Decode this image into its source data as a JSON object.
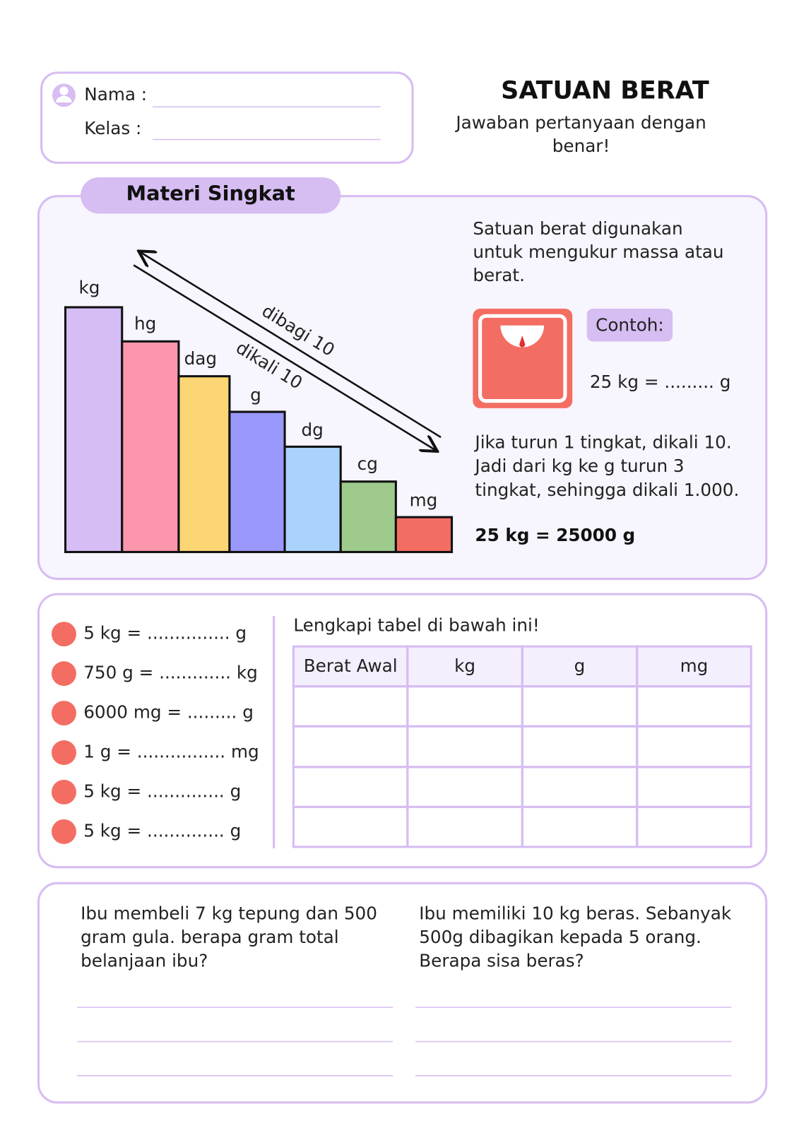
{
  "header": {
    "name_label": "Nama :",
    "class_label": "Kelas  :",
    "title": "SATUAN BERAT",
    "subtitle": [
      "Jawaban pertanyaan dengan",
      "benar!"
    ]
  },
  "summary": {
    "heading": "Materi Singkat",
    "units": [
      "kg",
      "hg",
      "dag",
      "g",
      "dg",
      "cg",
      "mg"
    ],
    "divide_label": "dibagi 10",
    "multiply_label": "dikali 10",
    "description": [
      "Satuan berat digunakan",
      "untuk mengukur massa atau",
      "berat."
    ],
    "example_label": "Contoh:",
    "example": "25 kg = ......... g",
    "explanation": [
      "Jika turun 1 tingkat, dikali 10.",
      "Jadi dari kg ke g turun 3",
      "tingkat, sehingga dikali 1.000."
    ],
    "answer": "25 kg = 25000 g"
  },
  "exercises": {
    "items": [
      "5 kg = ............... g",
      "750 g = ............. kg",
      "6000 mg = ......... g",
      "1 g = ................ mg",
      "5 kg = .............. g",
      "5 kg = .............. g"
    ],
    "instruction": "Lengkapi tabel di bawah ini!",
    "table_header": [
      "Berat Awal",
      "kg",
      "g",
      "mg"
    ]
  },
  "problems": [
    [
      "Ibu membeli 7 kg tepung dan 500",
      "gram gula. berapa gram total",
      "belanjaan ibu?"
    ],
    [
      "Ibu memiliki 10 kg beras. Sebanyak",
      "500g dibagikan kepada 5 orang.",
      "Berapa sisa beras?"
    ]
  ]
}
